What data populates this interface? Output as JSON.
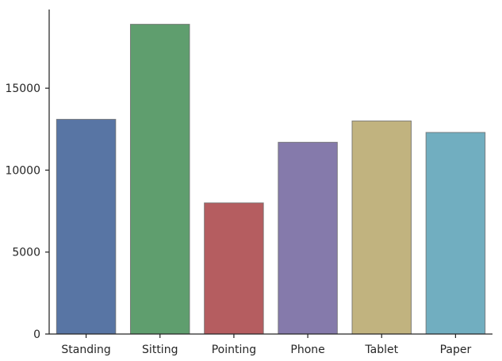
{
  "chart_data": {
    "type": "bar",
    "title": "",
    "xlabel": "",
    "ylabel": "",
    "categories": [
      "Standing",
      "Sitting",
      "Pointing",
      "Phone",
      "Tablet",
      "Paper"
    ],
    "values": [
      13100,
      18900,
      8000,
      11700,
      13000,
      12300
    ],
    "colors": [
      "#5875a4",
      "#5f9e6e",
      "#b55d60",
      "#857aab",
      "#c1b37f",
      "#71aec0"
    ],
    "ylim": [
      0,
      19800
    ],
    "yticks": [
      0,
      5000,
      10000,
      15000
    ],
    "grid": false,
    "legend": "none"
  }
}
